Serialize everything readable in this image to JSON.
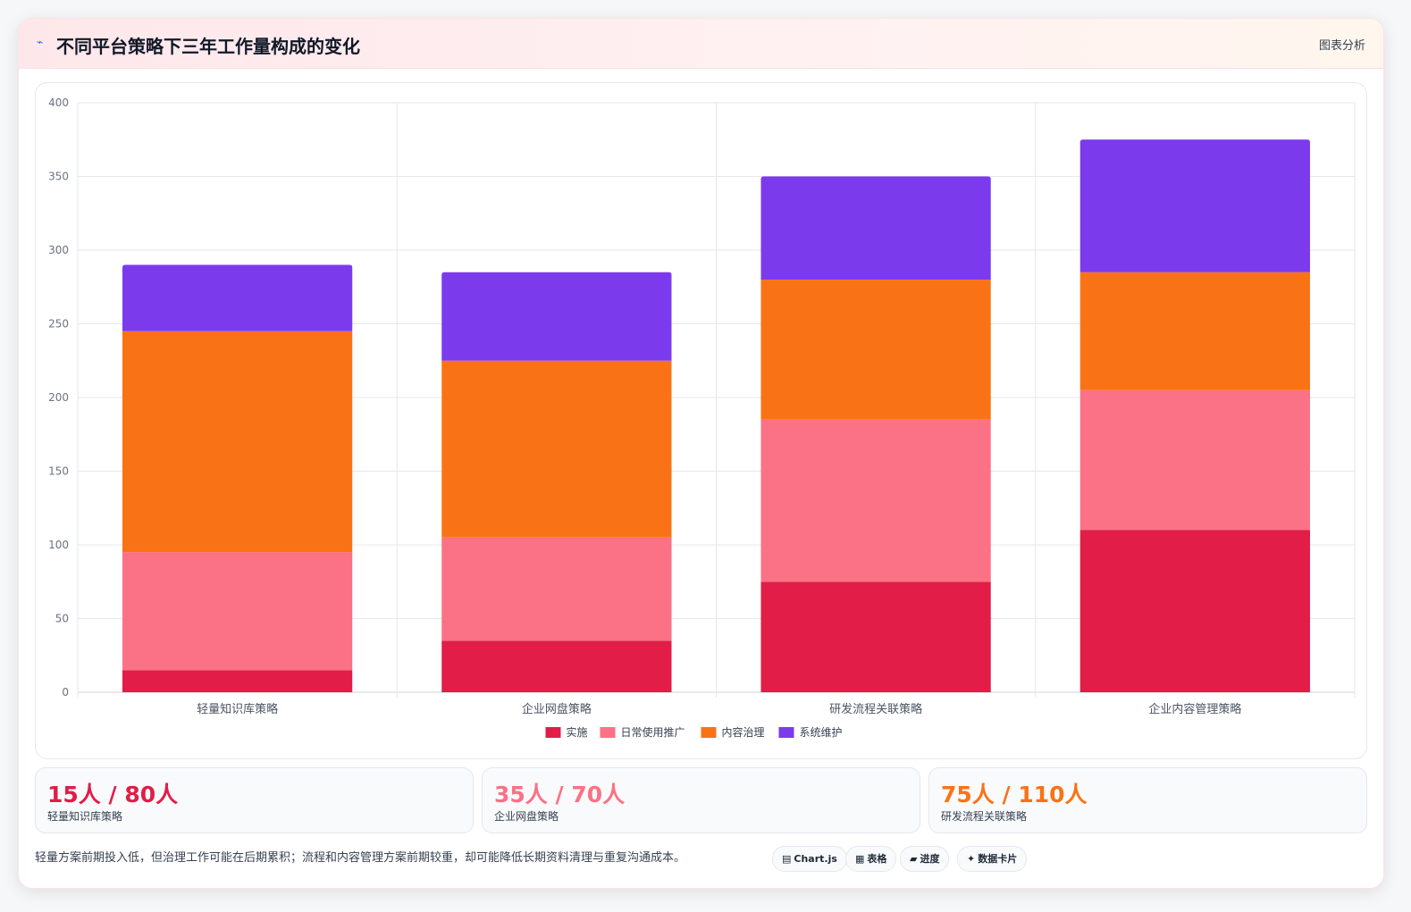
{
  "header": {
    "title": "不同平台策略下三年工作量构成的变化",
    "tag": "图表分析"
  },
  "chart_data": {
    "type": "bar",
    "stacked": true,
    "categories": [
      "轻量知识库策略",
      "企业网盘策略",
      "研发流程关联策略",
      "企业内容管理策略"
    ],
    "series": [
      {
        "name": "实施",
        "color": "#e11d48",
        "values": [
          15,
          35,
          75,
          110
        ]
      },
      {
        "name": "日常使用推广",
        "color": "#fb7185",
        "values": [
          80,
          70,
          110,
          95
        ]
      },
      {
        "name": "内容治理",
        "color": "#f97316",
        "values": [
          150,
          120,
          95,
          80
        ]
      },
      {
        "name": "系统维护",
        "color": "#7c3aed",
        "values": [
          45,
          60,
          70,
          90
        ]
      }
    ],
    "ylim": [
      0,
      400
    ],
    "yticks": [
      "0",
      "50",
      "100",
      "150",
      "200",
      "250",
      "300",
      "350",
      "400"
    ],
    "legend_position": "bottom",
    "grid": true
  },
  "stats": [
    {
      "value": "15人 / 80人",
      "label": "轻量知识库策略",
      "color": "#e11d48"
    },
    {
      "value": "35人 / 70人",
      "label": "企业网盘策略",
      "color": "#fb7185"
    },
    {
      "value": "75人 / 110人",
      "label": "研发流程关联策略",
      "color": "#f97316"
    }
  ],
  "note": "轻量方案前期投入低，但治理工作可能在后期累积；流程和内容管理方案前期较重，却可能降低长期资料清理与重复沟通成本。",
  "chips": [
    {
      "icon": "▤",
      "label": "Chart.js"
    },
    {
      "icon": "▦",
      "label": "表格"
    },
    {
      "icon": "▰",
      "label": "进度"
    },
    {
      "icon": "✦",
      "label": "数据卡片"
    }
  ]
}
